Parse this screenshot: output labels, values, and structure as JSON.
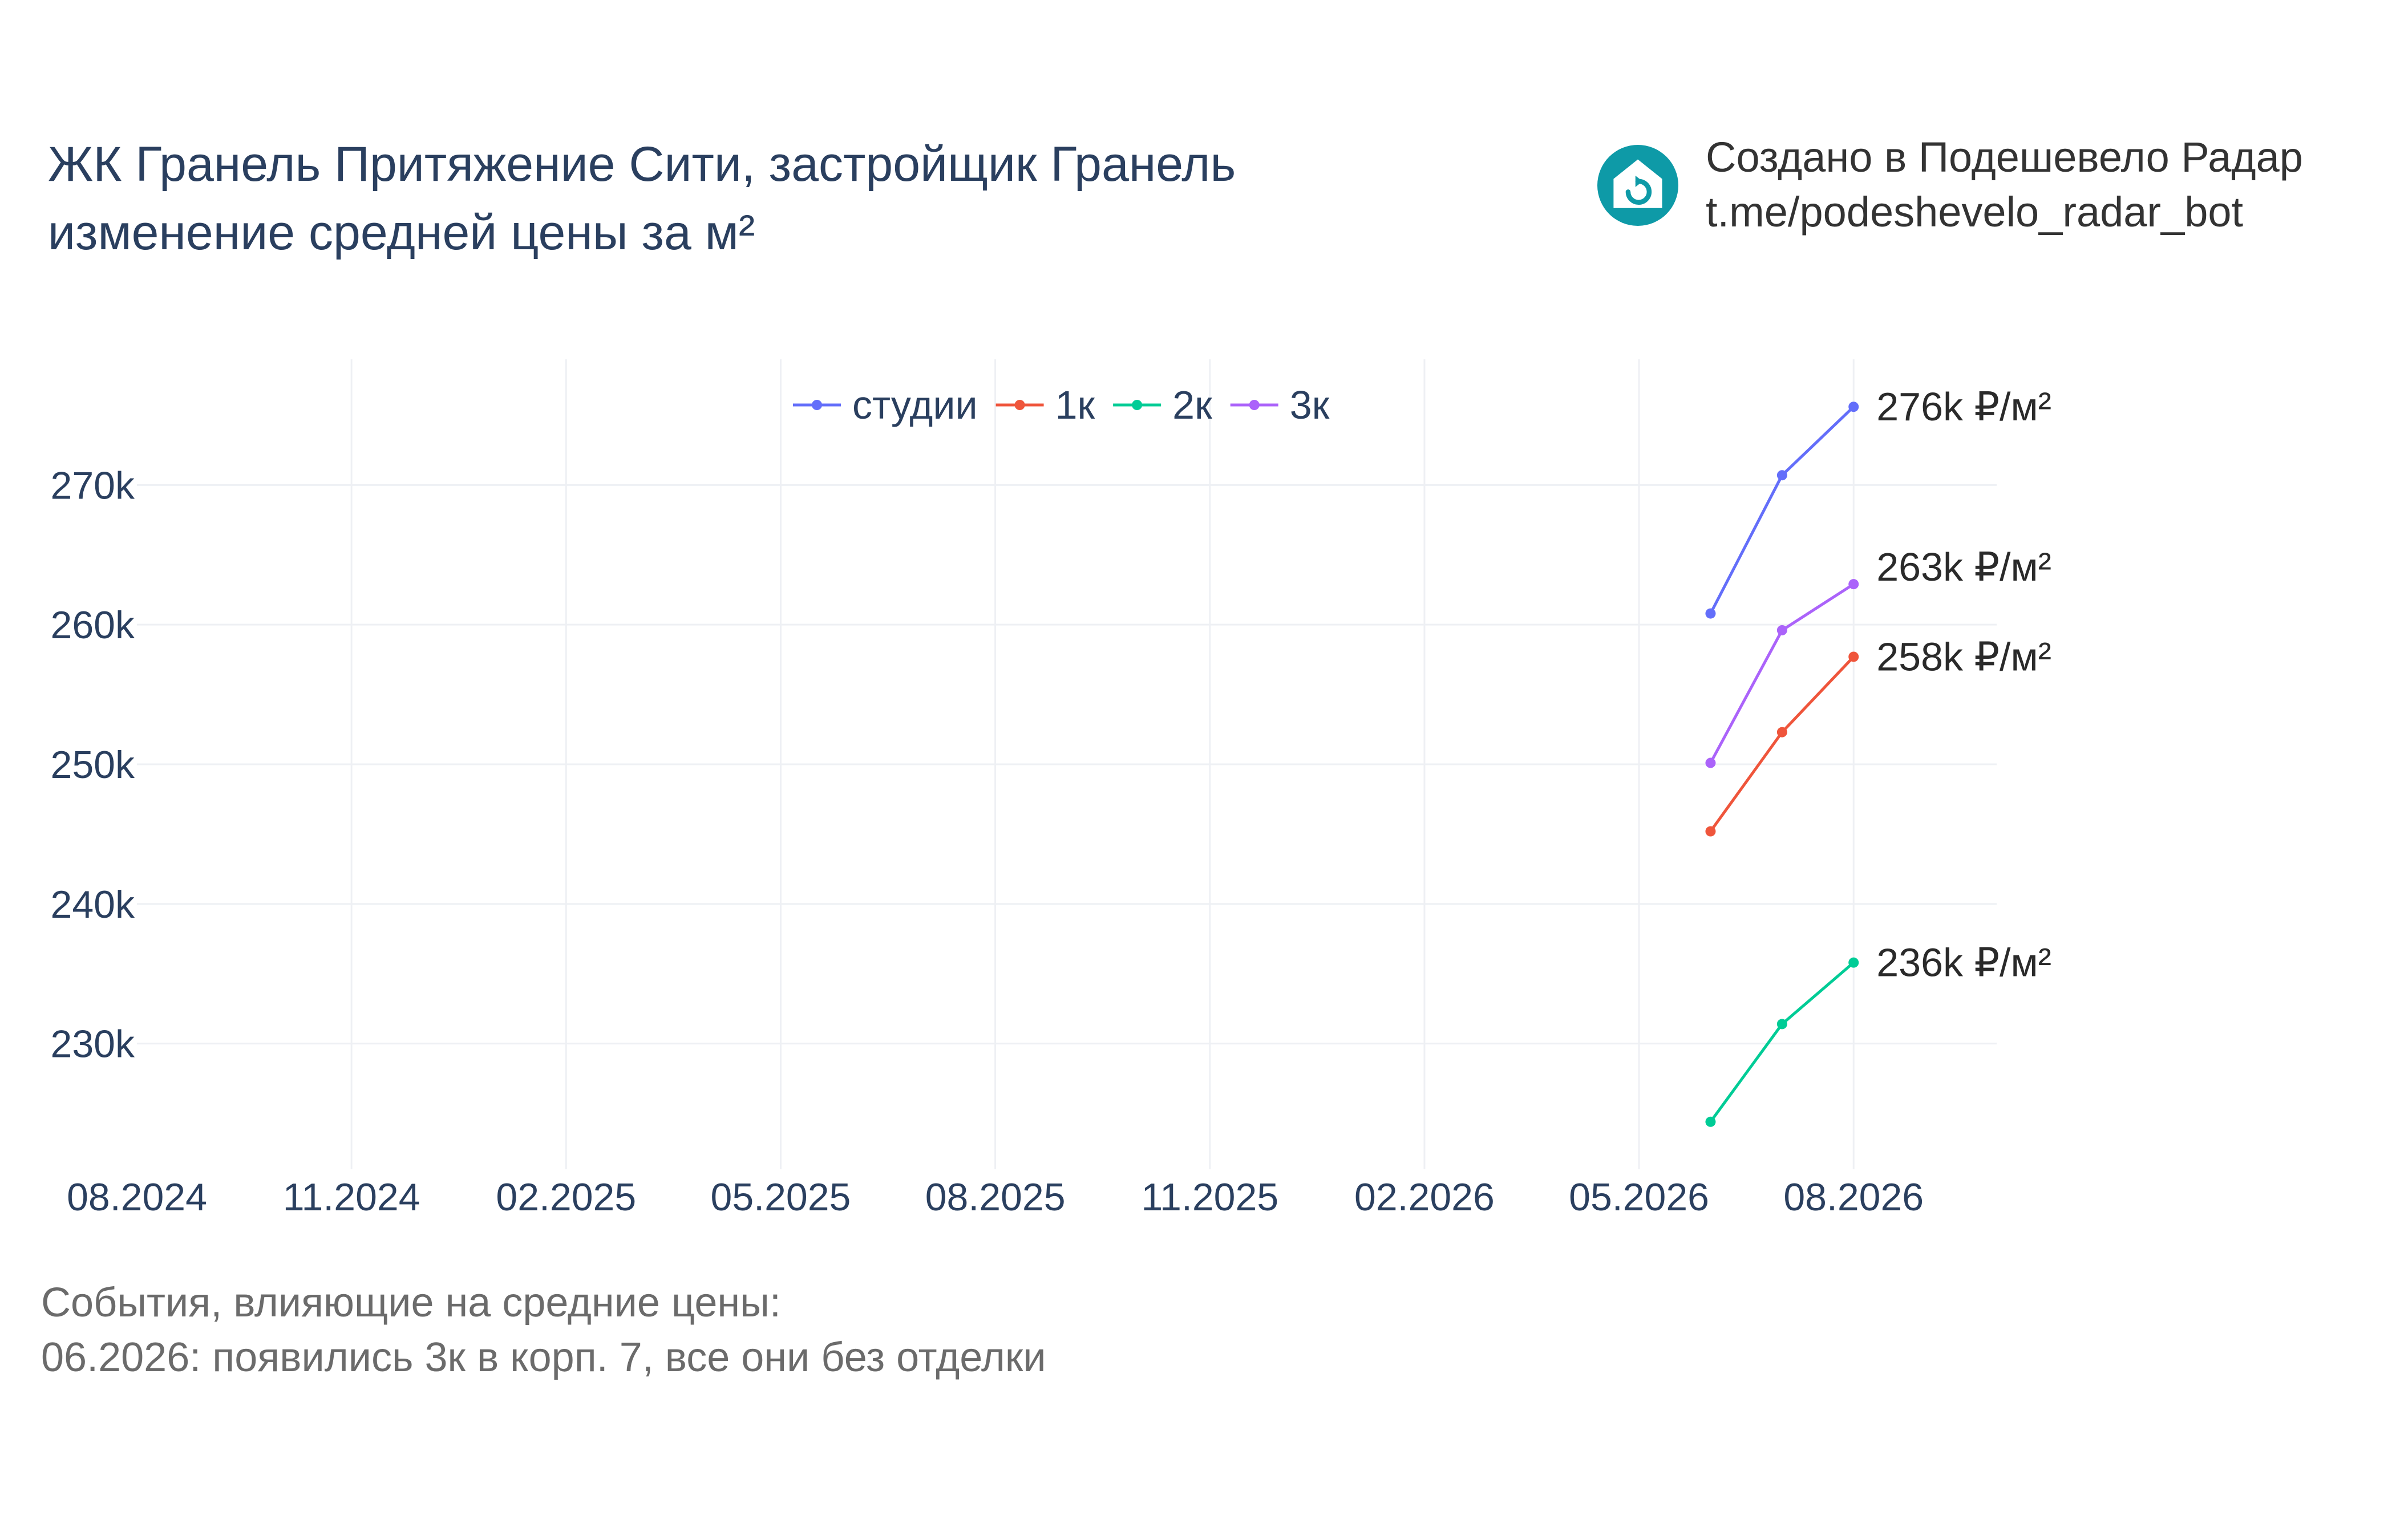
{
  "title": {
    "line1": "ЖК Гранель Притяжение Сити, застройщик Гранель",
    "line2": "изменение средней цены за м²"
  },
  "brand": {
    "line1": "Создано в Подешевело Радар",
    "line2": "t.me/podeshevelo_radar_bot",
    "icon": "house-refresh-icon",
    "color": "#0e9aa7"
  },
  "footnote": {
    "line1": "События, влияющие на средние цены:",
    "line2": "06.2026: появились 3к в корп. 7, все они без отделки"
  },
  "chart_data": {
    "type": "line",
    "x_tick_labels": [
      "08.2024",
      "11.2024",
      "02.2025",
      "05.2025",
      "08.2025",
      "11.2025",
      "02.2026",
      "05.2026",
      "08.2026"
    ],
    "x_ticks": [
      "2024-08",
      "2024-11",
      "2025-02",
      "2025-05",
      "2025-08",
      "2025-11",
      "2026-02",
      "2026-05",
      "2026-08"
    ],
    "x_range": [
      "2024-08",
      "2026-10"
    ],
    "x": [
      "2026-06",
      "2026-07",
      "2026-08"
    ],
    "y_ticks": [
      230000,
      240000,
      250000,
      260000,
      270000
    ],
    "y_tick_labels": [
      "230k",
      "240k",
      "250k",
      "260k",
      "270k"
    ],
    "ylim": [
      221000,
      279000
    ],
    "grid": true,
    "legend_position": "top-center",
    "series": [
      {
        "name": "студии",
        "color": "#636efa",
        "values": [
          260800,
          270700,
          275600
        ],
        "end_label": "276k ₽/м²"
      },
      {
        "name": "1к",
        "color": "#ef553b",
        "values": [
          245200,
          252300,
          257700
        ],
        "end_label": "258k ₽/м²"
      },
      {
        "name": "2к",
        "color": "#00cc96",
        "values": [
          224400,
          231400,
          235800
        ],
        "end_label": "236k ₽/м²"
      },
      {
        "name": "3к",
        "color": "#ab63fa",
        "values": [
          250100,
          259600,
          262900
        ],
        "end_label": "263k ₽/м²"
      }
    ]
  }
}
